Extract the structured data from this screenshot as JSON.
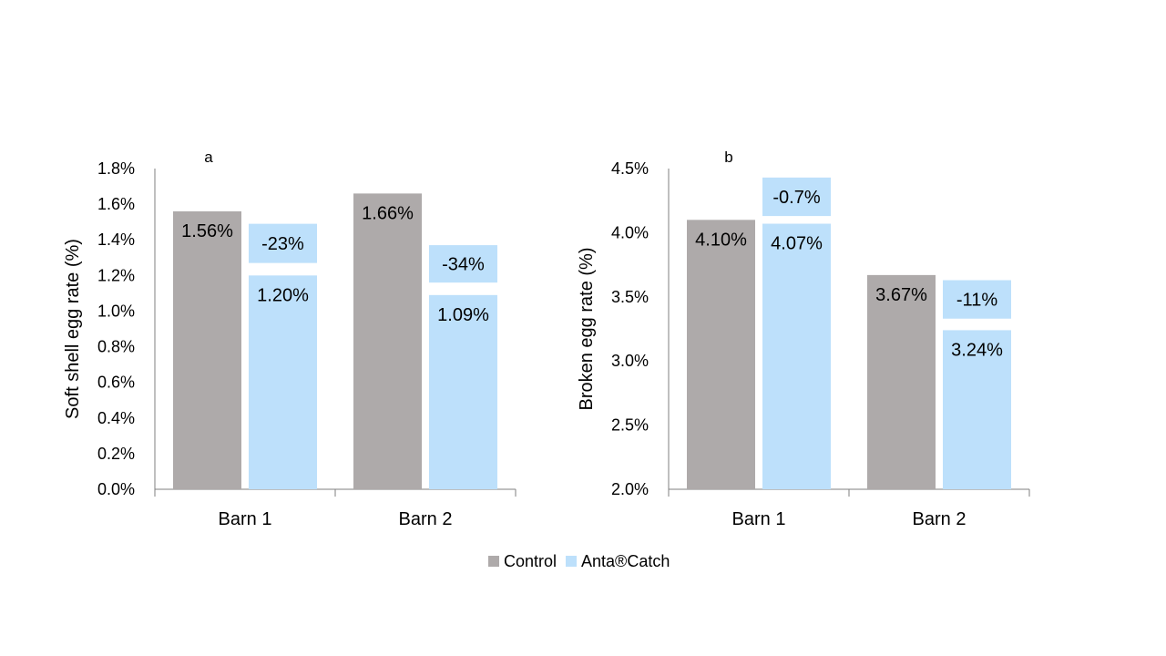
{
  "chart_data": [
    {
      "type": "bar",
      "panel_label": "a",
      "ylabel": "Soft shell egg rate (%)",
      "xlabel": "",
      "ylim": [
        0,
        1.8
      ],
      "ytick_step": 0.2,
      "ytick_decimals": 1,
      "categories": [
        "Barn 1",
        "Barn 2"
      ],
      "series": [
        {
          "name": "Control",
          "values": [
            1.56,
            1.66
          ],
          "labels": [
            "1.56%",
            "1.66%"
          ]
        },
        {
          "name": "Anta®Catch",
          "values": [
            1.2,
            1.09
          ],
          "labels": [
            "1.20%",
            "1.09%"
          ]
        }
      ],
      "change_labels": [
        "-23%",
        "-34%"
      ],
      "change_box_tops": [
        1.49,
        1.37
      ],
      "change_box_bottoms": [
        1.27,
        1.16
      ],
      "grid": false
    },
    {
      "type": "bar",
      "panel_label": "b",
      "ylabel": "Broken egg rate (%)",
      "xlabel": "",
      "ylim": [
        2.0,
        4.5
      ],
      "ytick_step": 0.5,
      "ytick_decimals": 1,
      "categories": [
        "Barn 1",
        "Barn 2"
      ],
      "series": [
        {
          "name": "Control",
          "values": [
            4.1,
            3.67
          ],
          "labels": [
            "4.10%",
            "3.67%"
          ]
        },
        {
          "name": "Anta®Catch",
          "values": [
            4.07,
            3.24
          ],
          "labels": [
            "4.07%",
            "3.24%"
          ]
        }
      ],
      "change_labels": [
        "-0.7%",
        "-11%"
      ],
      "change_box_tops": [
        4.43,
        3.63
      ],
      "change_box_bottoms": [
        4.13,
        3.33
      ],
      "grid": false
    }
  ],
  "legend": {
    "placement": "bottom-center",
    "items": [
      {
        "label": "Control",
        "color": "#aeaaaa"
      },
      {
        "label": "Anta®Catch",
        "color": "#bde0fb"
      }
    ]
  },
  "colors": {
    "control": "#aeaaaa",
    "treatment": "#bde0fb",
    "axis": "#7f7f7f",
    "text": "#000000"
  }
}
